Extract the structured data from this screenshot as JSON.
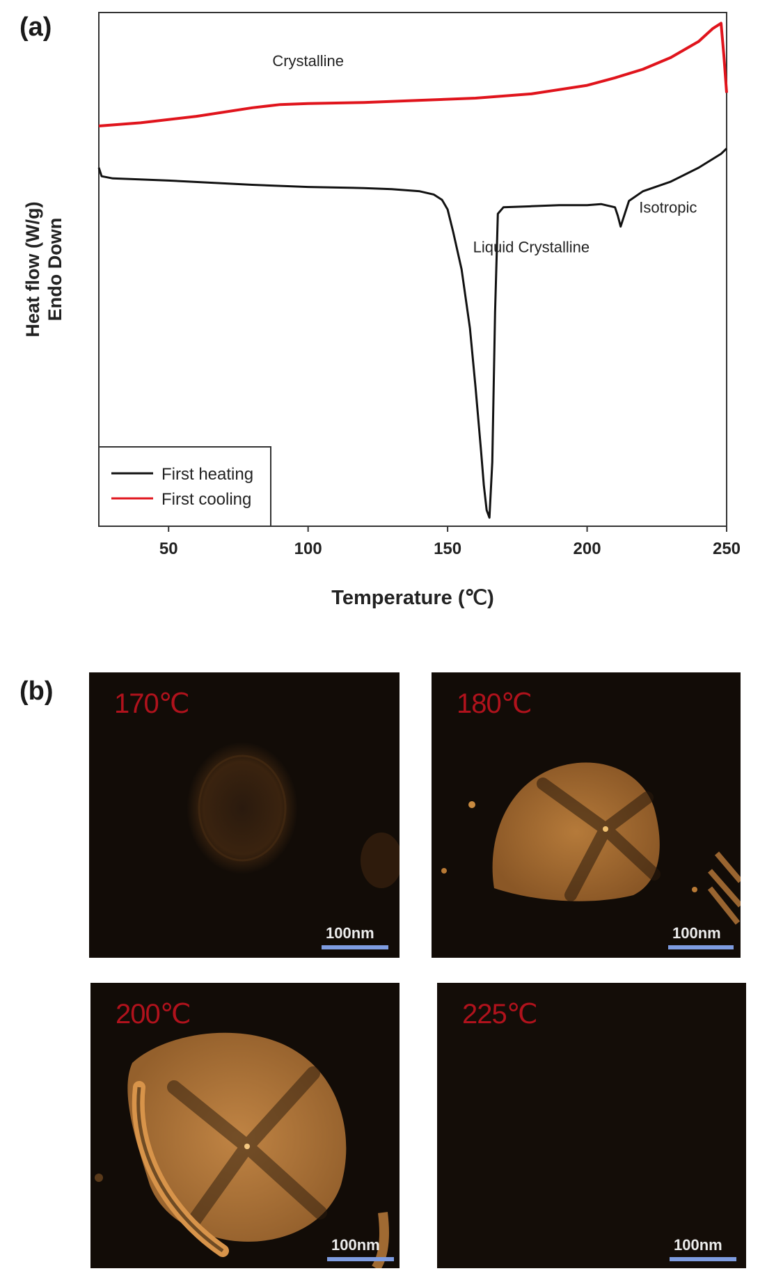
{
  "panel_a_label": "(a)",
  "panel_b_label": "(b)",
  "chart_data": {
    "type": "line",
    "title": "",
    "xlabel": "Temperature (℃)",
    "ylabel_line1": "Heat flow (W/g)",
    "ylabel_line2": "Endo Down",
    "xlim": [
      25,
      250
    ],
    "xticks": [
      50,
      100,
      150,
      200,
      250
    ],
    "ylim": [
      -2.2,
      2.6
    ],
    "grid": false,
    "legend_position": "bottom-left",
    "series": [
      {
        "name": "First heating",
        "color": "#111111",
        "x": [
          25,
          26,
          30,
          50,
          80,
          100,
          120,
          130,
          140,
          145,
          148,
          150,
          152,
          155,
          158,
          160,
          162,
          163,
          164,
          165,
          166,
          167,
          168,
          170,
          180,
          190,
          200,
          205,
          210,
          211,
          212,
          213,
          214,
          215,
          220,
          230,
          240,
          248,
          250
        ],
        "y": [
          1.15,
          1.07,
          1.05,
          1.03,
          0.99,
          0.97,
          0.96,
          0.95,
          0.93,
          0.9,
          0.85,
          0.76,
          0.55,
          0.2,
          -0.35,
          -0.9,
          -1.5,
          -1.82,
          -2.05,
          -2.12,
          -1.6,
          -0.2,
          0.72,
          0.78,
          0.79,
          0.8,
          0.8,
          0.81,
          0.78,
          0.7,
          0.6,
          0.68,
          0.76,
          0.84,
          0.93,
          1.02,
          1.15,
          1.28,
          1.33
        ]
      },
      {
        "name": "First cooling",
        "color": "#e0141c",
        "x": [
          25,
          40,
          60,
          80,
          90,
          100,
          120,
          140,
          160,
          180,
          200,
          210,
          220,
          230,
          240,
          245,
          248,
          249,
          250
        ],
        "y": [
          1.54,
          1.57,
          1.63,
          1.71,
          1.74,
          1.75,
          1.76,
          1.78,
          1.8,
          1.84,
          1.92,
          1.99,
          2.07,
          2.18,
          2.33,
          2.45,
          2.5,
          2.2,
          1.85
        ]
      }
    ],
    "annotations": [
      {
        "text": "Crystalline",
        "x": 100,
        "y": 2.1
      },
      {
        "text": "Liquid Crystalline",
        "x": 180,
        "y": 0.36
      },
      {
        "text": "Isotropic",
        "x": 229,
        "y": 0.73
      }
    ]
  },
  "micrographs": [
    {
      "temperature": "170℃",
      "scale": "100nm"
    },
    {
      "temperature": "180℃",
      "scale": "100nm"
    },
    {
      "temperature": "200℃",
      "scale": "100nm"
    },
    {
      "temperature": "225℃",
      "scale": "100nm"
    }
  ]
}
